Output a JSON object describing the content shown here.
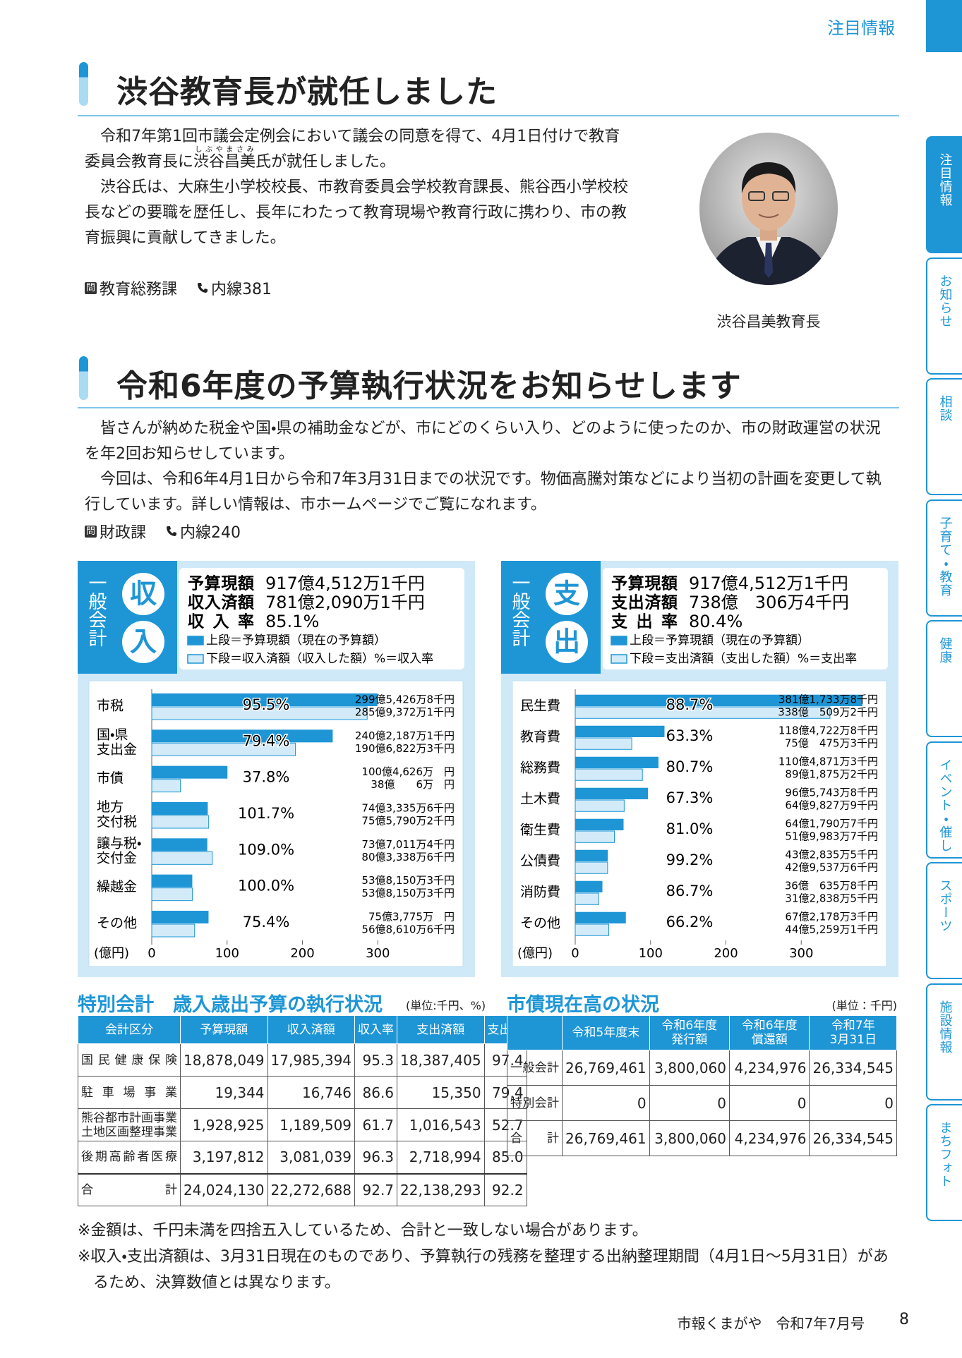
{
  "header": {
    "section": "注目情報"
  },
  "sidebar": {
    "tabs": [
      "注目情報",
      "お知らせ",
      "相談",
      "子育て・教育",
      "健康",
      "イベント・催し",
      "スポーツ",
      "施設情報",
      "まちフォト"
    ]
  },
  "article1": {
    "title": "渋谷教育長が就任しました",
    "paragraph1": {
      "before": "令和7年第1回市議会定例会において議会の同意を得て、4月1日付けで教育委員会教育長に",
      "ruby": [
        {
          "base": "渋谷",
          "reading": "しぶや"
        },
        {
          "base": "昌美",
          "reading": "まさみ"
        }
      ],
      "after": "氏が就任しました。"
    },
    "paragraph2": "渋谷氏は、大麻生小学校校長、市教育委員会学校教育課長、熊谷西小学校校長などの要職を歴任し、長年にわたって教育現場や教育行政に携わり、市の教育振興に貢献してきました。",
    "contact": {
      "icon": "問",
      "department": "教育総務課",
      "phone": "内線381"
    },
    "photo_caption": "渋谷昌美教育長"
  },
  "article2": {
    "title": "令和6年度の予算執行状況をお知らせします",
    "paragraphs": [
      "皆さんが納めた税金や国・県の補助金などが、市にどのくらい入り、どのように使ったのか、市の財政運営の状況を年2回お知らせしています。",
      "今回は、令和6年4月1日から令和7年3月31日までの状況です。物価高騰対策などにより当初の計画を変更して執行しています。詳しい情報は、市ホームページでご覧になれます。"
    ],
    "contact": {
      "icon": "問",
      "department": "財政課",
      "phone": "内線240"
    }
  },
  "chart_data": [
    {
      "type": "bar",
      "orientation": "horizontal",
      "account": "一般会計",
      "heading": [
        "収",
        "入"
      ],
      "summary": [
        {
          "label": "予算現額",
          "value": "917億4,512万1千円"
        },
        {
          "label": "収入済額",
          "value": "781億2,090万1千円"
        },
        {
          "label": "収入率",
          "value": "85.1%"
        }
      ],
      "unit": "(億円)",
      "categories": [
        [
          "市税"
        ],
        [
          "国・県",
          "支出金"
        ],
        [
          "市債"
        ],
        [
          "地方",
          "交付税"
        ],
        [
          "譲与税・",
          "交付金"
        ],
        [
          "繰越金"
        ],
        [
          "その他"
        ]
      ],
      "series": [
        {
          "name": "上段＝予算現額（現在の予算額）",
          "color": "#1e96d6",
          "values": [
            299.54268,
            240.21871,
            100.4626,
            74.33356,
            73.70114,
            53.81503,
            75.3775
          ],
          "value_labels": [
            "299億5,426万8千円",
            "240億2,187万1千円",
            "100億4,626万　円",
            "74億3,335万6千円",
            "73億7,011万4千円",
            "53億8,150万3千円",
            "75億3,775万　円"
          ]
        },
        {
          "name": "下段＝収入済額（収入した額）%＝収入率",
          "color": "#d3ebf9",
          "values": [
            285.93721,
            190.68223,
            38.0006,
            75.57902,
            80.33386,
            53.81503,
            56.86106
          ],
          "value_labels": [
            "285億9,372万1千円",
            "190億6,822万3千円",
            "38億　　6万　円",
            "75億5,790万2千円",
            "80億3,338万6千円",
            "53億8,150万3千円",
            "56億8,610万6千円"
          ]
        }
      ],
      "rate_labels": [
        "95.5%",
        "79.4%",
        "37.8%",
        "101.7%",
        "109.0%",
        "100.0%",
        "75.4%"
      ],
      "xlim": [
        0,
        400
      ],
      "xticks": [
        0,
        100,
        200,
        300
      ]
    },
    {
      "type": "bar",
      "orientation": "horizontal",
      "account": "一般会計",
      "heading": [
        "支",
        "出"
      ],
      "summary": [
        {
          "label": "予算現額",
          "value": "917億4,512万1千円"
        },
        {
          "label": "支出済額",
          "value": "738億　306万4千円"
        },
        {
          "label": "支出率",
          "value": "80.4%"
        }
      ],
      "unit": "(億円)",
      "categories": [
        [
          "民生費"
        ],
        [
          "教育費"
        ],
        [
          "総務費"
        ],
        [
          "土木費"
        ],
        [
          "衛生費"
        ],
        [
          "公債費"
        ],
        [
          "消防費"
        ],
        [
          "その他"
        ]
      ],
      "series": [
        {
          "name": "上段＝予算現額（現在の予算額）",
          "color": "#1e96d6",
          "values": [
            381.17338,
            118.47228,
            110.48713,
            96.57438,
            64.17907,
            43.28355,
            36.06358,
            67.21783
          ],
          "value_labels": [
            "381億1,733万8千円",
            "118億4,722万8千円",
            "110億4,871万3千円",
            "96億5,743万8千円",
            "64億1,790万7千円",
            "43億2,835万5千円",
            "36億　635万8千円",
            "67億2,178万3千円"
          ]
        },
        {
          "name": "下段＝支出済額（支出した額）%＝支出率",
          "color": "#d3ebf9",
          "values": [
            338.05092,
            75.04753,
            89.18752,
            64.98279,
            51.99837,
            42.95376,
            31.28385,
            44.52591
          ],
          "value_labels": [
            "338億　509万2千円",
            "75億　475万3千円",
            "89億1,875万2千円",
            "64億9,827万9千円",
            "51億9,983万7千円",
            "42億9,537万6千円",
            "31億2,838万5千円",
            "44億5,259万1千円"
          ]
        }
      ],
      "rate_labels": [
        "88.7%",
        "63.3%",
        "80.7%",
        "67.3%",
        "81.0%",
        "99.2%",
        "86.7%",
        "66.2%"
      ],
      "xlim": [
        0,
        400
      ],
      "xticks": [
        0,
        100,
        200,
        300
      ]
    }
  ],
  "special_accounts": {
    "title": "特別会計　歳入歳出予算の執行状況",
    "unit": "(単位:千円、%)",
    "headers": [
      "会計区分",
      "予算現額",
      "収入済額",
      "収入率",
      "支出済額",
      "支出率"
    ],
    "rows": [
      {
        "label": [
          "国民健康保険"
        ],
        "cells": [
          "18,878,049",
          "17,985,394",
          "95.3",
          "18,387,405",
          "97.4"
        ]
      },
      {
        "label": [
          "駐車場事業"
        ],
        "cells": [
          "19,344",
          "16,746",
          "86.6",
          "15,350",
          "79.4"
        ]
      },
      {
        "label": [
          "熊谷都市計画事業",
          "土地区画整理事業"
        ],
        "cells": [
          "1,928,925",
          "1,189,509",
          "61.7",
          "1,016,543",
          "52.7"
        ]
      },
      {
        "label": [
          "後期高齢者医療"
        ],
        "cells": [
          "3,197,812",
          "3,081,039",
          "96.3",
          "2,718,994",
          "85.0"
        ]
      },
      {
        "label": [
          "合計"
        ],
        "cells": [
          "24,024,130",
          "22,272,688",
          "92.7",
          "22,138,293",
          "92.2"
        ]
      }
    ]
  },
  "municipal_bonds": {
    "title": "市債現在高の状況",
    "unit": "(単位：千円)",
    "headers": [
      [
        "令和5年度末"
      ],
      [
        "令和6年度",
        "発行額"
      ],
      [
        "令和6年度",
        "償還額"
      ],
      [
        "令和7年",
        "3月31日"
      ]
    ],
    "rows": [
      {
        "label": "一般会計",
        "cells": [
          "26,769,461",
          "3,800,060",
          "4,234,976",
          "26,334,545"
        ]
      },
      {
        "label": "特別会計",
        "cells": [
          "0",
          "0",
          "0",
          "0"
        ]
      },
      {
        "label": "合計",
        "cells": [
          "26,769,461",
          "3,800,060",
          "4,234,976",
          "26,334,545"
        ]
      }
    ]
  },
  "notes": [
    "※金額は、千円未満を四捨五入しているため、合計と一致しない場合があります。",
    "※収入・支出済額は、3月31日現在のものであり、予算執行の残務を整理する出納整理期間（4月1日～5月31日）があるため、決算数値とは異なります。"
  ],
  "footer": {
    "publication": "市報くまがや　令和7年7月号",
    "page_number": "8"
  }
}
